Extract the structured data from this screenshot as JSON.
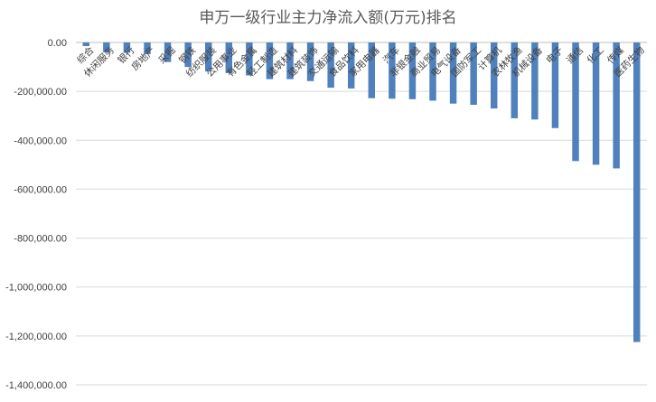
{
  "chart_data": {
    "type": "bar",
    "title": "申万一级行业主力净流入额(万元)排名",
    "xlabel": "",
    "ylabel": "",
    "ylim": [
      -1400000,
      0
    ],
    "ytick_step": 200000,
    "yticks": [
      "0.00",
      "-200,000.00",
      "-400,000.00",
      "-600,000.00",
      "-800,000.00",
      "-1,000,000.00",
      "-1,200,000.00",
      "-1,400,000.00"
    ],
    "grid": true,
    "legend": "none",
    "bar_color": "#4f81bd",
    "categories": [
      "综合",
      "休闲服务",
      "银行",
      "房地产",
      "采掘",
      "钢铁",
      "纺织服装",
      "公用事业",
      "有色金属",
      "轻工制造",
      "建筑材料",
      "建筑装饰",
      "交通运输",
      "食品饮料",
      "家用电器",
      "汽车",
      "非银金融",
      "商业贸易",
      "电气设备",
      "国防军工",
      "计算机",
      "农林牧渔",
      "机械设备",
      "电子",
      "通信",
      "化工",
      "传媒",
      "医药生物"
    ],
    "values": [
      -15000,
      -40000,
      -42000,
      -48000,
      -80000,
      -100000,
      -118000,
      -125000,
      -135000,
      -150000,
      -150000,
      -158000,
      -185000,
      -188000,
      -228000,
      -230000,
      -232000,
      -238000,
      -250000,
      -255000,
      -270000,
      -310000,
      -315000,
      -350000,
      -485000,
      -500000,
      -515000,
      -1225000
    ]
  }
}
